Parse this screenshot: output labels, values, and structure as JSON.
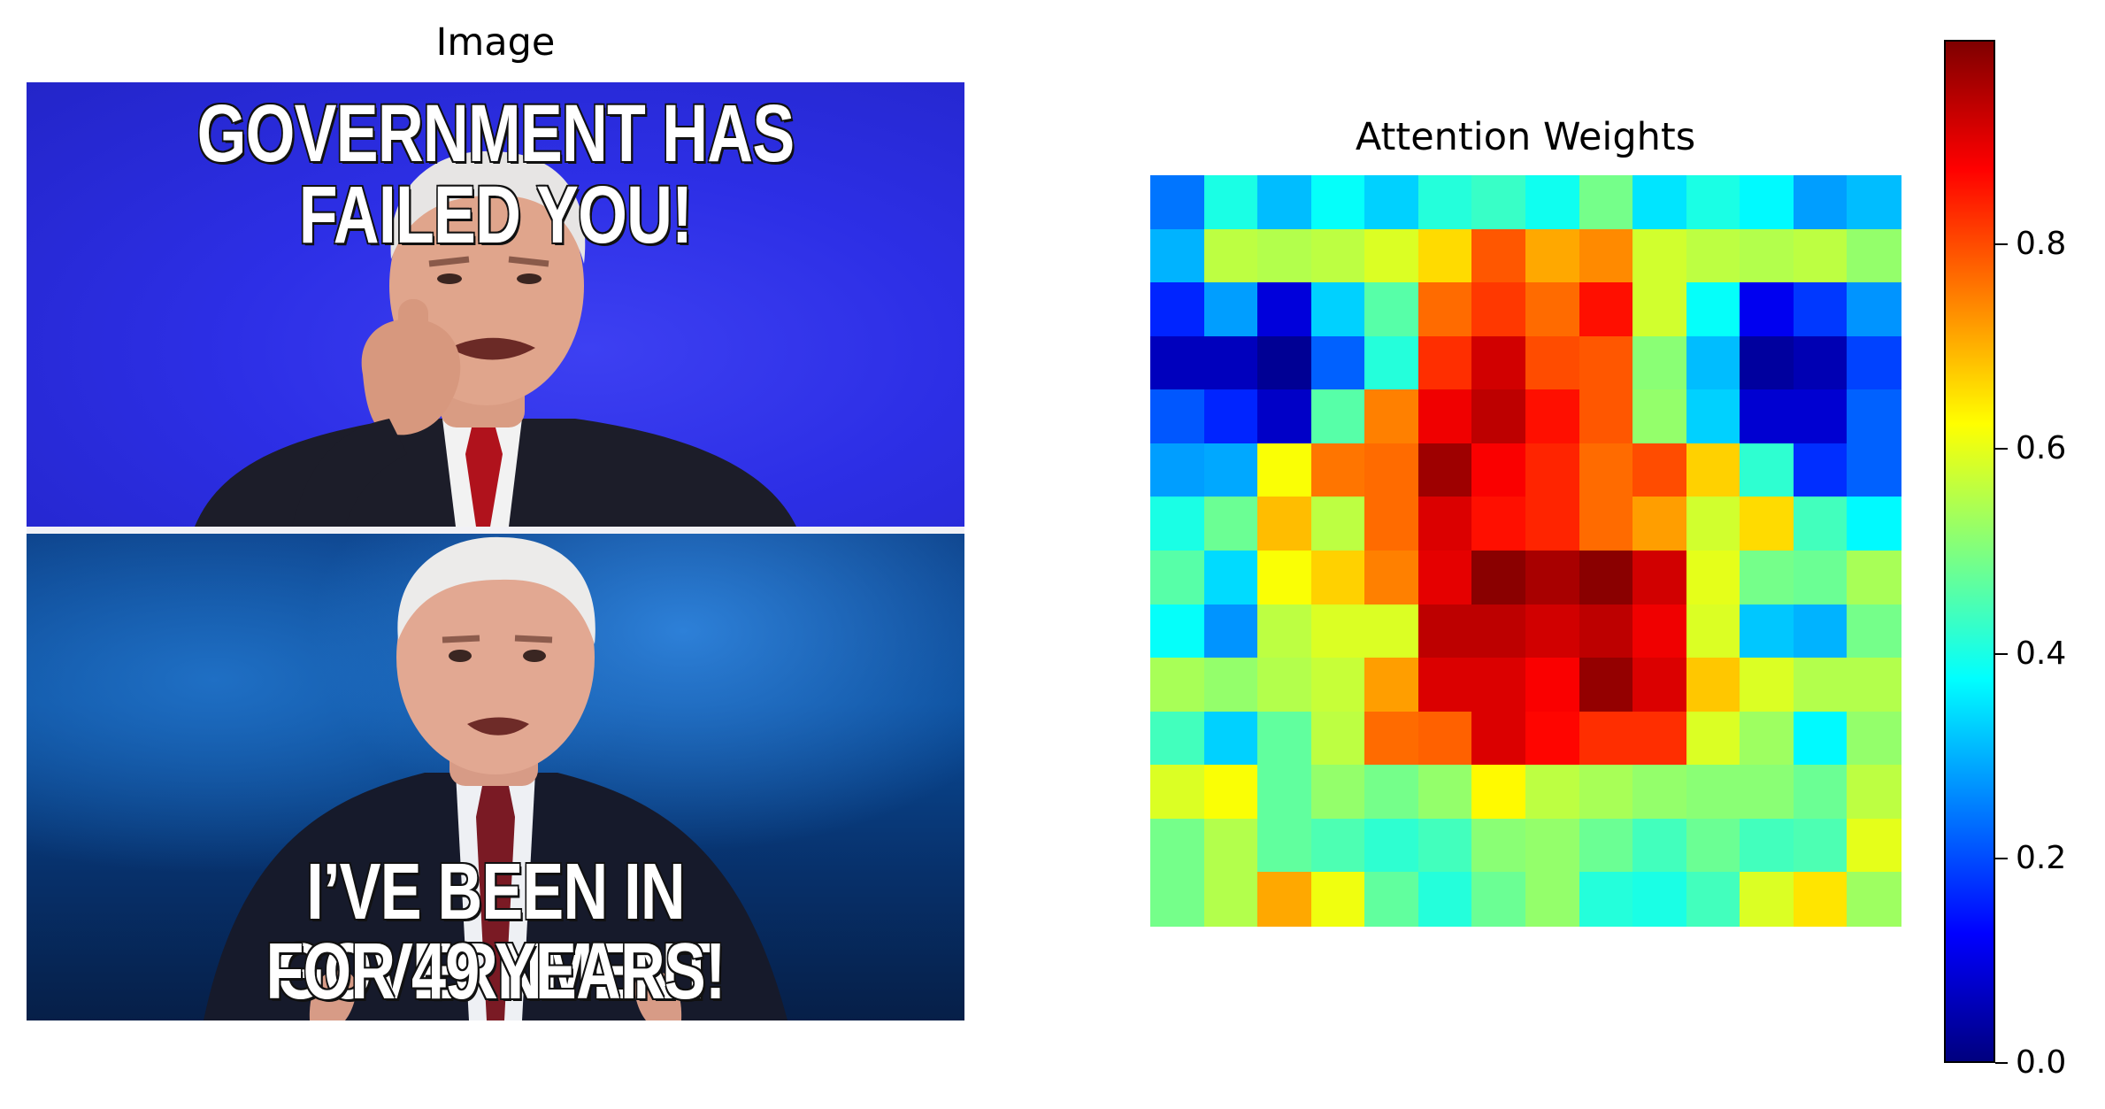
{
  "image_panel": {
    "title": "Image",
    "top_caption": "GOVERNMENT HAS FAILED YOU!",
    "bottom_caption_line1": "I’VE BEEN IN GOVERNMENT",
    "bottom_caption_line2": "FOR 49 YEARS!"
  },
  "chart_data": {
    "type": "heatmap",
    "title": "Attention Weights",
    "rows": 14,
    "cols": 14,
    "colormap": "jet",
    "vmin": 0.0,
    "vmax": 1.0,
    "axes_visible": false,
    "colorbar": {
      "ticks": [
        0.0,
        0.2,
        0.4,
        0.6,
        0.8
      ],
      "tick_labels": [
        "0.0",
        "0.2",
        "0.4",
        "0.6",
        "0.8"
      ],
      "placement": "right"
    },
    "values": [
      [
        0.24,
        0.4,
        0.31,
        0.38,
        0.33,
        0.41,
        0.43,
        0.39,
        0.49,
        0.35,
        0.4,
        0.37,
        0.28,
        0.31
      ],
      [
        0.3,
        0.56,
        0.55,
        0.56,
        0.59,
        0.66,
        0.79,
        0.71,
        0.74,
        0.58,
        0.56,
        0.55,
        0.56,
        0.52
      ],
      [
        0.16,
        0.28,
        0.09,
        0.33,
        0.46,
        0.77,
        0.82,
        0.77,
        0.86,
        0.58,
        0.38,
        0.11,
        0.18,
        0.27
      ],
      [
        0.06,
        0.06,
        0.02,
        0.22,
        0.41,
        0.83,
        0.92,
        0.8,
        0.79,
        0.51,
        0.31,
        0.03,
        0.05,
        0.19
      ],
      [
        0.21,
        0.16,
        0.07,
        0.46,
        0.75,
        0.89,
        0.94,
        0.86,
        0.79,
        0.52,
        0.33,
        0.08,
        0.08,
        0.22
      ],
      [
        0.28,
        0.29,
        0.62,
        0.76,
        0.77,
        0.97,
        0.88,
        0.84,
        0.77,
        0.8,
        0.67,
        0.42,
        0.17,
        0.22
      ],
      [
        0.4,
        0.48,
        0.69,
        0.56,
        0.77,
        0.91,
        0.86,
        0.84,
        0.77,
        0.72,
        0.58,
        0.66,
        0.44,
        0.37
      ],
      [
        0.46,
        0.34,
        0.62,
        0.67,
        0.75,
        0.9,
        0.99,
        0.96,
        0.99,
        0.92,
        0.6,
        0.49,
        0.48,
        0.54
      ],
      [
        0.38,
        0.27,
        0.56,
        0.59,
        0.59,
        0.94,
        0.94,
        0.92,
        0.94,
        0.89,
        0.59,
        0.32,
        0.3,
        0.49
      ],
      [
        0.54,
        0.52,
        0.55,
        0.57,
        0.72,
        0.91,
        0.91,
        0.88,
        0.98,
        0.91,
        0.68,
        0.59,
        0.55,
        0.55
      ],
      [
        0.44,
        0.33,
        0.47,
        0.56,
        0.77,
        0.78,
        0.91,
        0.87,
        0.83,
        0.83,
        0.59,
        0.53,
        0.37,
        0.52
      ],
      [
        0.59,
        0.62,
        0.47,
        0.52,
        0.49,
        0.52,
        0.63,
        0.56,
        0.54,
        0.52,
        0.51,
        0.51,
        0.48,
        0.56
      ],
      [
        0.49,
        0.55,
        0.47,
        0.45,
        0.42,
        0.44,
        0.51,
        0.52,
        0.48,
        0.44,
        0.48,
        0.44,
        0.45,
        0.6
      ],
      [
        0.49,
        0.55,
        0.71,
        0.61,
        0.47,
        0.41,
        0.48,
        0.52,
        0.41,
        0.4,
        0.44,
        0.59,
        0.65,
        0.53
      ]
    ]
  }
}
